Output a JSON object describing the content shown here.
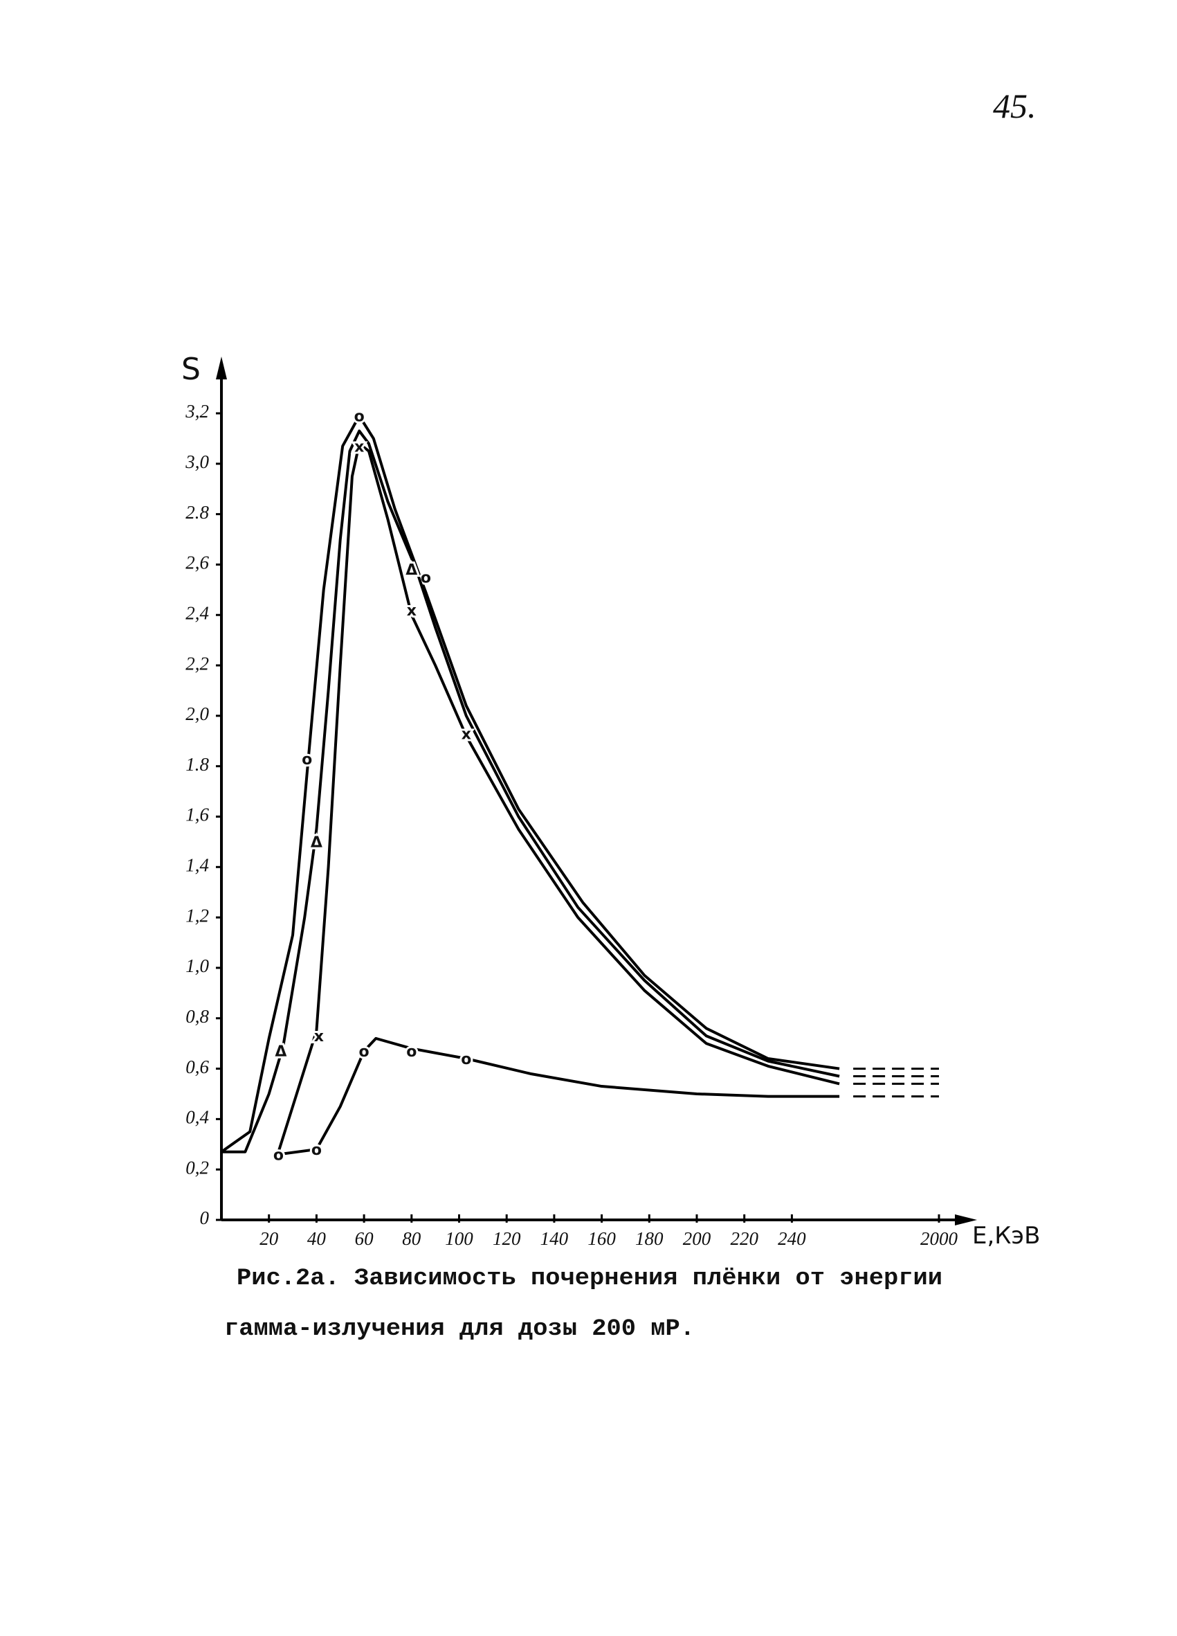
{
  "page_number": "45.",
  "chart_data": {
    "type": "line",
    "ylabel": "S",
    "xlabel": "E,КэВ",
    "xlim": [
      0,
      2000
    ],
    "xticks": [
      20,
      40,
      60,
      80,
      100,
      120,
      140,
      160,
      180,
      200,
      220,
      240,
      2000
    ],
    "ylim": [
      0,
      3.2
    ],
    "yticks": [
      0,
      {
        "value": 0.2,
        "label": "0,2"
      },
      {
        "value": 0.4,
        "label": "0,4"
      },
      {
        "value": 0.6,
        "label": "0,6"
      },
      {
        "value": 0.8,
        "label": "0,8"
      },
      {
        "value": 1.0,
        "label": "1,0"
      },
      {
        "value": 1.2,
        "label": "1,2"
      },
      {
        "value": 1.4,
        "label": "1,4"
      },
      {
        "value": 1.6,
        "label": "1,6"
      },
      {
        "value": 1.8,
        "label": "1.8"
      },
      {
        "value": 2.0,
        "label": "2,0"
      },
      {
        "value": 2.2,
        "label": "2,2"
      },
      {
        "value": 2.4,
        "label": "2,4"
      },
      {
        "value": 2.6,
        "label": "2,6"
      },
      {
        "value": 2.8,
        "label": "2.8"
      },
      {
        "value": 3.0,
        "label": "3,0"
      },
      {
        "value": 3.2,
        "label": "3,2"
      }
    ],
    "series": [
      {
        "marker": "o",
        "color": "#000000",
        "x": [
          0,
          12,
          20,
          30,
          36,
          43,
          51,
          58,
          64,
          73,
          86,
          103,
          125,
          152,
          178,
          204,
          230,
          260
        ],
        "values": [
          0.27,
          0.35,
          0.72,
          1.13,
          1.77,
          2.5,
          3.07,
          3.19,
          3.1,
          2.82,
          2.49,
          2.04,
          1.63,
          1.26,
          0.97,
          0.76,
          0.64,
          0.6
        ],
        "points": {
          "x": [
            36,
            58,
            86
          ],
          "values": [
            1.83,
            3.19,
            2.55
          ]
        }
      },
      {
        "marker": "Δ",
        "color": "#000000",
        "x": [
          0,
          10,
          20,
          26,
          35,
          40,
          45,
          50,
          54,
          58,
          62,
          70,
          82,
          90,
          103,
          125,
          150,
          178,
          204,
          230,
          260
        ],
        "values": [
          0.27,
          0.27,
          0.5,
          0.69,
          1.2,
          1.55,
          2.1,
          2.7,
          3.05,
          3.13,
          3.08,
          2.85,
          2.58,
          2.35,
          2.0,
          1.6,
          1.24,
          0.95,
          0.73,
          0.63,
          0.57
        ],
        "points": {
          "x": [
            25,
            40,
            80
          ],
          "values": [
            0.67,
            1.5,
            2.58
          ]
        }
      },
      {
        "marker": "x",
        "color": "#000000",
        "x": [
          24,
          30,
          40,
          45,
          50,
          55,
          58,
          62,
          70,
          80,
          90,
          103,
          125,
          150,
          178,
          204,
          230,
          260
        ],
        "values": [
          0.27,
          0.45,
          0.75,
          1.4,
          2.2,
          2.95,
          3.08,
          3.05,
          2.78,
          2.4,
          2.2,
          1.92,
          1.55,
          1.2,
          0.91,
          0.7,
          0.61,
          0.54
        ],
        "points": {
          "x": [
            41,
            58,
            80,
            103
          ],
          "values": [
            0.73,
            3.07,
            2.42,
            1.93
          ]
        }
      },
      {
        "marker": "o",
        "color": "#000000",
        "x": [
          24,
          40,
          50,
          60,
          65,
          80,
          103,
          130,
          160,
          200,
          230,
          260
        ],
        "values": [
          0.26,
          0.28,
          0.45,
          0.67,
          0.72,
          0.68,
          0.64,
          0.58,
          0.53,
          0.5,
          0.49,
          0.49
        ],
        "points": {
          "x": [
            24,
            40,
            60,
            80,
            103
          ],
          "values": [
            0.26,
            0.28,
            0.67,
            0.67,
            0.64
          ]
        }
      }
    ]
  },
  "caption": [
    "Рис.2а. Зависимость почернения плёнки от энергии",
    "гамма-излучения для дозы 200 мР."
  ]
}
